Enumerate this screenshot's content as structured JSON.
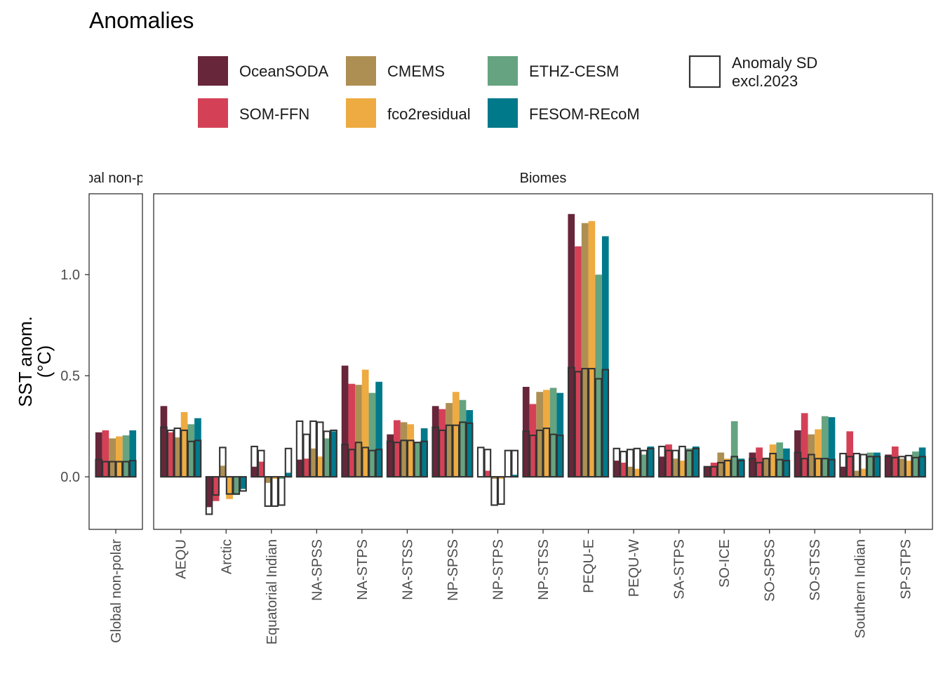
{
  "chart_data": {
    "type": "bar",
    "title": "Anomalies",
    "ylabel_line1": "SST anom.",
    "ylabel_line2": "(°C)",
    "ylim": [
      -0.26,
      1.4
    ],
    "yticks": [
      0.0,
      0.5,
      1.0
    ],
    "ytick_labels": [
      "0.0",
      "0.5",
      "1.0"
    ],
    "grid": false,
    "legend_position": "top",
    "sd_legend_line1": "Anomaly SD",
    "sd_legend_line2": "excl.2023",
    "series": [
      {
        "name": "OceanSODA",
        "color": "#67263a"
      },
      {
        "name": "SOM-FFN",
        "color": "#d44157"
      },
      {
        "name": "CMEMS",
        "color": "#ad8f53"
      },
      {
        "name": "fco2residual",
        "color": "#eeab42"
      },
      {
        "name": "ETHZ-CESM",
        "color": "#66a380"
      },
      {
        "name": "FESOM-REcoM",
        "color": "#00798b"
      }
    ],
    "panels": [
      {
        "strip": "Global non-polar",
        "categories": [
          "Global non-polar"
        ],
        "anomaly": [
          [
            0.22,
            0.23,
            0.19,
            0.2,
            0.205,
            0.23
          ]
        ],
        "sd": [
          [
            0.085,
            0.075,
            0.075,
            0.075,
            0.075,
            0.08
          ]
        ]
      },
      {
        "strip": "Biomes",
        "categories": [
          "AEQU",
          "Arctic",
          "Equatorial Indian",
          "NA-SPSS",
          "NA-STPS",
          "NA-STSS",
          "NP-SPSS",
          "NP-STPS",
          "NP-STSS",
          "PEQU-E",
          "PEQU-W",
          "SA-STPS",
          "SO-ICE",
          "SO-SPSS",
          "SO-STSS",
          "Southern Indian",
          "SP-STPS"
        ],
        "anomaly": [
          [
            0.35,
            0.22,
            0.195,
            0.32,
            0.26,
            0.29
          ],
          [
            -0.15,
            -0.12,
            0.055,
            -0.11,
            -0.09,
            -0.06
          ],
          [
            0.05,
            0.075,
            -0.03,
            -0.01,
            -0.01,
            0.02
          ],
          [
            0.085,
            0.09,
            0.14,
            0.1,
            0.19,
            0.225
          ],
          [
            0.55,
            0.46,
            0.455,
            0.53,
            0.415,
            0.47
          ],
          [
            0.21,
            0.28,
            0.27,
            0.26,
            0.17,
            0.24
          ],
          [
            0.35,
            0.335,
            0.365,
            0.42,
            0.38,
            0.33
          ],
          [
            0.0,
            0.03,
            -0.01,
            -0.01,
            0.0,
            0.01
          ],
          [
            0.445,
            0.36,
            0.42,
            0.43,
            0.44,
            0.415
          ],
          [
            1.3,
            1.14,
            1.255,
            1.265,
            1.0,
            1.19
          ],
          [
            0.08,
            0.07,
            0.05,
            0.04,
            0.11,
            0.15
          ],
          [
            0.1,
            0.16,
            0.09,
            0.08,
            0.14,
            0.15
          ],
          [
            0.05,
            0.07,
            0.12,
            0.09,
            0.275,
            0.09
          ],
          [
            0.12,
            0.145,
            0.095,
            0.16,
            0.17,
            0.14
          ],
          [
            0.23,
            0.315,
            0.21,
            0.235,
            0.3,
            0.295
          ],
          [
            0.05,
            0.225,
            0.03,
            0.04,
            0.12,
            0.12
          ],
          [
            0.11,
            0.15,
            0.09,
            0.08,
            0.125,
            0.145
          ]
        ],
        "sd": [
          [
            0.245,
            0.23,
            0.24,
            0.23,
            0.175,
            0.18
          ],
          [
            -0.185,
            -0.09,
            0.145,
            -0.085,
            -0.085,
            -0.07
          ],
          [
            0.15,
            0.13,
            -0.145,
            -0.145,
            -0.14,
            0.14
          ],
          [
            0.275,
            0.21,
            0.275,
            0.27,
            0.225,
            0.23
          ],
          [
            0.16,
            0.135,
            0.17,
            0.145,
            0.13,
            0.135
          ],
          [
            0.175,
            0.17,
            0.18,
            0.18,
            0.17,
            0.175
          ],
          [
            0.245,
            0.23,
            0.255,
            0.255,
            0.27,
            0.265
          ],
          [
            0.145,
            0.135,
            -0.14,
            -0.135,
            0.13,
            0.13
          ],
          [
            0.225,
            0.205,
            0.23,
            0.24,
            0.21,
            0.205
          ],
          [
            0.54,
            0.52,
            0.535,
            0.535,
            0.485,
            0.53
          ],
          [
            0.14,
            0.125,
            0.135,
            0.14,
            0.13,
            0.14
          ],
          [
            0.15,
            0.13,
            0.13,
            0.15,
            0.13,
            0.14
          ],
          [
            0.05,
            0.05,
            0.07,
            0.08,
            0.1,
            0.08
          ],
          [
            0.09,
            0.07,
            0.09,
            0.115,
            0.085,
            0.08
          ],
          [
            0.12,
            0.09,
            0.11,
            0.09,
            0.09,
            0.085
          ],
          [
            0.115,
            0.1,
            0.115,
            0.11,
            0.1,
            0.1
          ],
          [
            0.1,
            0.095,
            0.1,
            0.105,
            0.095,
            0.1
          ]
        ]
      }
    ]
  }
}
